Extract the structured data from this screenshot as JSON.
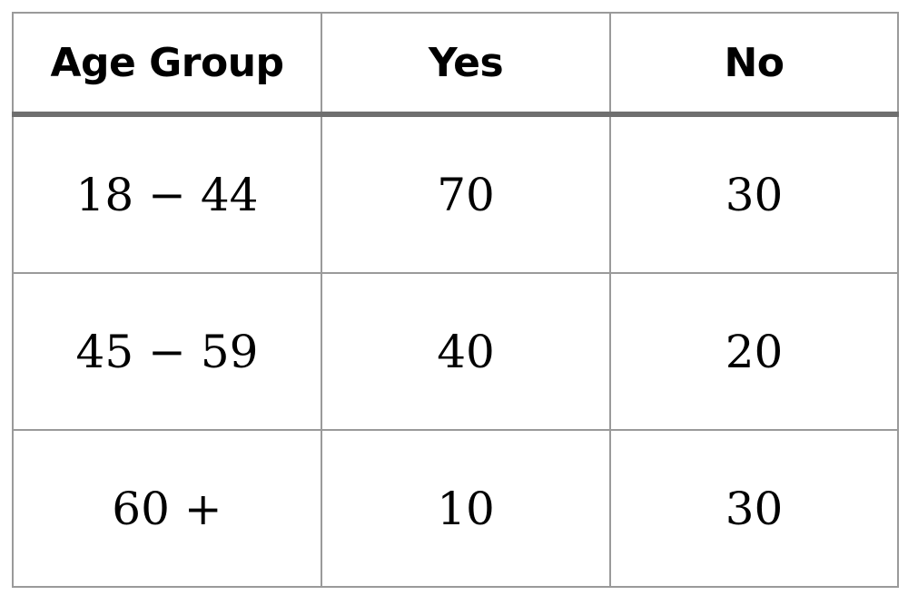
{
  "chart_data": {
    "type": "table",
    "columns": [
      "Age Group",
      "Yes",
      "No"
    ],
    "rows": [
      [
        "18 − 44",
        "70",
        "30"
      ],
      [
        "45 − 59",
        "40",
        "20"
      ],
      [
        "60 +",
        "10",
        "30"
      ]
    ],
    "categories": [
      "18 − 44",
      "45 − 59",
      "60 +"
    ],
    "series": [
      {
        "name": "Yes",
        "values": [
          70,
          40,
          10
        ]
      },
      {
        "name": "No",
        "values": [
          30,
          20,
          30
        ]
      }
    ]
  }
}
